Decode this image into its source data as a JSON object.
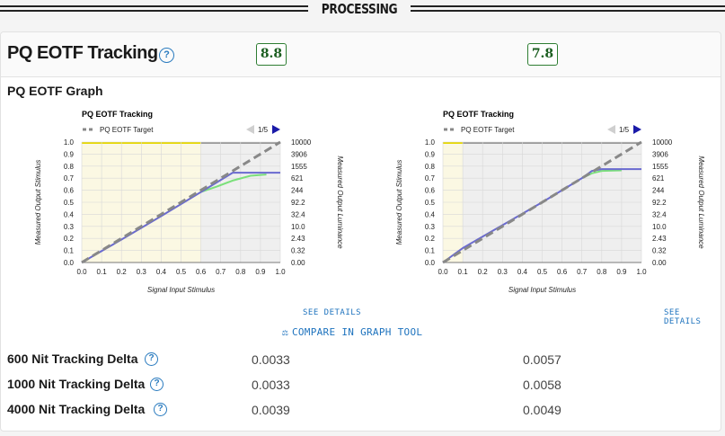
{
  "section": {
    "title": "PROCESSING"
  },
  "card": {
    "title": "PQ EOTF Tracking",
    "help_icon": "?",
    "scores": [
      "8.8",
      "7.8"
    ],
    "graph_label": "PQ EOTF Graph"
  },
  "charts_common": {
    "legend_target": "PQ EOTF Target",
    "page": "1/5",
    "ylabel_left": "Measured Output Stimulus",
    "ylabel_right": "Measured Output Luminance",
    "xlabel": "Signal Input Stimulus",
    "x_ticks": [
      "0.0",
      "0.1",
      "0.2",
      "0.3",
      "0.4",
      "0.5",
      "0.6",
      "0.7",
      "0.8",
      "0.9",
      "1.0"
    ],
    "y_ticks": [
      "0.0",
      "0.1",
      "0.2",
      "0.3",
      "0.4",
      "0.5",
      "0.6",
      "0.7",
      "0.8",
      "0.9",
      "1.0"
    ],
    "y2_ticks": [
      "0.00",
      "0.32",
      "2.43",
      "10.0",
      "32.4",
      "92.2",
      "244",
      "621",
      "1555",
      "3906",
      "10000"
    ]
  },
  "chart_data": [
    {
      "type": "line",
      "title": "PQ EOTF Tracking",
      "xlabel": "Signal Input Stimulus",
      "ylabel": "Measured Output Stimulus",
      "xlim": [
        0,
        1
      ],
      "ylim": [
        0,
        1
      ],
      "highlight_range": [
        0,
        0.6
      ],
      "series": [
        {
          "name": "PQ EOTF Target",
          "color": "#888888",
          "x": [
            0,
            1.0
          ],
          "y": [
            0,
            1.0
          ]
        },
        {
          "color": "#6a6ad0",
          "x": [
            0,
            0.2,
            0.4,
            0.6,
            0.76,
            0.85,
            1.0
          ],
          "y": [
            0,
            0.19,
            0.385,
            0.585,
            0.745,
            0.745,
            0.745
          ]
        },
        {
          "color": "#7be07b",
          "x": [
            0.6,
            0.68,
            0.76,
            0.85,
            0.93
          ],
          "y": [
            0.585,
            0.63,
            0.68,
            0.72,
            0.73
          ]
        }
      ]
    },
    {
      "type": "line",
      "title": "PQ EOTF Tracking",
      "xlabel": "Signal Input Stimulus",
      "ylabel": "Measured Output Stimulus",
      "xlim": [
        0,
        1
      ],
      "ylim": [
        0,
        1
      ],
      "highlight_range": [
        0,
        0.1
      ],
      "series": [
        {
          "name": "PQ EOTF Target",
          "color": "#888888",
          "x": [
            0,
            1.0
          ],
          "y": [
            0,
            1.0
          ]
        },
        {
          "color": "#6a6ad0",
          "x": [
            0,
            0.1,
            0.3,
            0.5,
            0.7,
            0.75,
            0.8,
            1.0
          ],
          "y": [
            0,
            0.12,
            0.31,
            0.5,
            0.7,
            0.76,
            0.775,
            0.775
          ]
        },
        {
          "color": "#7be07b",
          "x": [
            0.7,
            0.75,
            0.8,
            0.9
          ],
          "y": [
            0.7,
            0.74,
            0.76,
            0.765
          ]
        }
      ]
    }
  ],
  "links": {
    "see_details": "SEE DETAILS",
    "compare": "COMPARE IN GRAPH TOOL"
  },
  "metrics": [
    {
      "label": "600 Nit Tracking Delta",
      "v1": "0.0033",
      "v2": "0.0057"
    },
    {
      "label": "1000 Nit Tracking Delta",
      "v1": "0.0033",
      "v2": "0.0058"
    },
    {
      "label": "4000 Nit Tracking Delta",
      "v1": "0.0039",
      "v2": "0.0049"
    }
  ],
  "colors": {
    "accent": "#1e73be",
    "score_border": "#2e7d32",
    "highlight": "#fbf8e3",
    "highlight_bar": "#e6d800",
    "gray_zone": "#efefef"
  }
}
